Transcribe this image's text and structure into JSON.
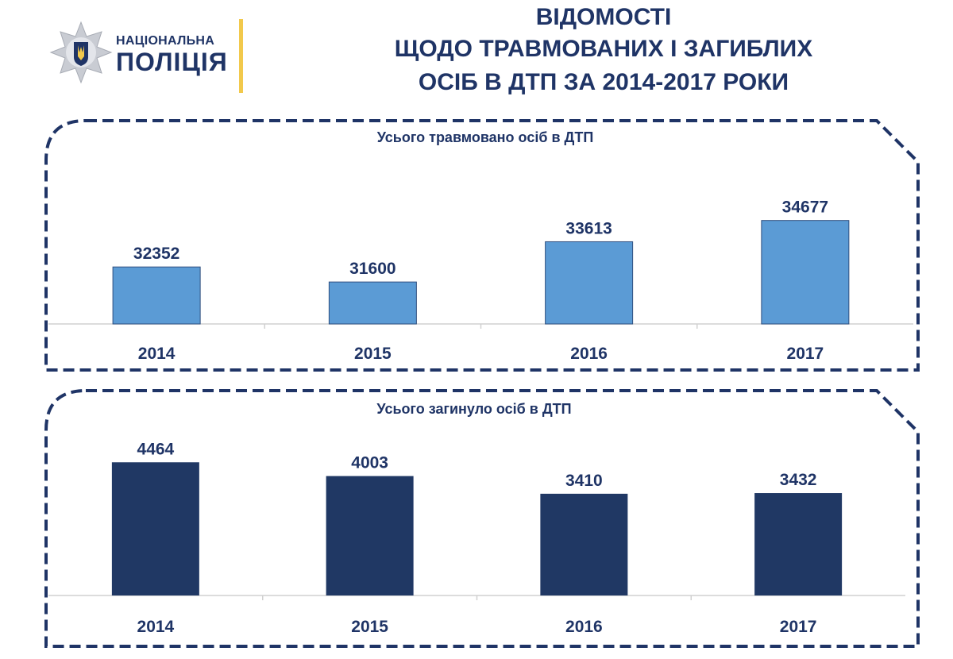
{
  "header": {
    "logo_line1": "НАЦІОНАЛЬНА",
    "logo_line2": "ПОЛІЦІЯ",
    "title_line1": "ВІДОМОСТІ",
    "title_line2": "ЩОДО ТРАВМОВАНИХ І ЗАГИБЛИХ",
    "title_line3": "ОСІБ В ДТП ЗА 2014-2017 РОКИ"
  },
  "colors": {
    "dark_navy": "#1f3466",
    "injured_bar": "#5b9bd5",
    "killed_bar": "#203864",
    "accent_yellow": "#f2c94c"
  },
  "chart_data": [
    {
      "type": "bar",
      "title": "Усього травмовано осіб в ДТП",
      "categories": [
        "2014",
        "2015",
        "2016",
        "2017"
      ],
      "values": [
        32352,
        31600,
        33613,
        34677
      ],
      "ylim": [
        29500,
        35300
      ],
      "grid": false,
      "color": "#5b9bd5"
    },
    {
      "type": "bar",
      "title": "Усього загинуло осіб в ДТП",
      "categories": [
        "2014",
        "2015",
        "2016",
        "2017"
      ],
      "values": [
        4464,
        4003,
        3410,
        3432
      ],
      "ylim": [
        0,
        4950
      ],
      "grid": false,
      "color": "#203864"
    }
  ]
}
